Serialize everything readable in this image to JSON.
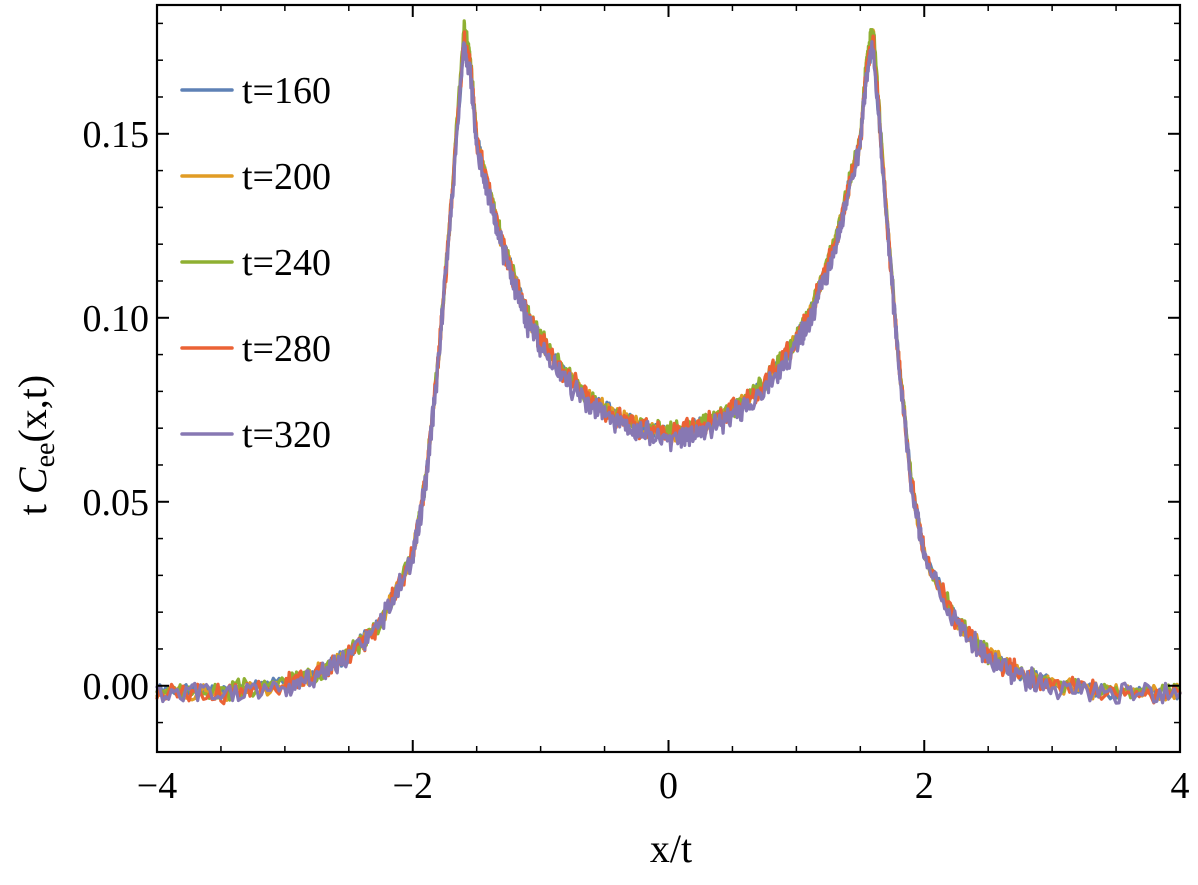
{
  "chart_data": {
    "type": "line",
    "title": "",
    "xlabel": "x/t",
    "ylabel_prefix": "t ",
    "ylabel_main": "C",
    "ylabel_sub": "ee",
    "ylabel_suffix": "(x,t)",
    "xlim": [
      -4,
      4
    ],
    "ylim": [
      -0.018,
      0.185
    ],
    "x_ticks": [
      -4,
      -2,
      0,
      2,
      4
    ],
    "x_tick_labels": [
      "−4",
      "−2",
      "0",
      "2",
      "4"
    ],
    "y_ticks": [
      0.0,
      0.05,
      0.1,
      0.15
    ],
    "y_tick_labels": [
      "0.00",
      "0.05",
      "0.10",
      "0.15"
    ],
    "grid": false,
    "legend_position": "top-left",
    "x": [
      -4.0,
      -3.5,
      -3.0,
      -2.75,
      -2.5,
      -2.25,
      -2.0,
      -1.9,
      -1.8,
      -1.7,
      -1.6,
      -1.55,
      -1.5,
      -1.4,
      -1.3,
      -1.2,
      -1.1,
      -1.0,
      -0.8,
      -0.6,
      -0.4,
      -0.2,
      0.0,
      0.2,
      0.4,
      0.6,
      0.8,
      1.0,
      1.1,
      1.2,
      1.3,
      1.4,
      1.5,
      1.55,
      1.6,
      1.7,
      1.8,
      1.9,
      2.0,
      2.25,
      2.5,
      2.75,
      3.0,
      3.5,
      4.0
    ],
    "series": [
      {
        "name": "t=160",
        "color": "#5E81B5",
        "seed": 1,
        "amp": 0.0015,
        "shift": 0.0005,
        "values": [
          -0.002,
          -0.002,
          0.0,
          0.003,
          0.008,
          0.017,
          0.035,
          0.055,
          0.088,
          0.13,
          0.173,
          0.168,
          0.148,
          0.134,
          0.12,
          0.11,
          0.1,
          0.094,
          0.084,
          0.077,
          0.073,
          0.07,
          0.068,
          0.07,
          0.073,
          0.077,
          0.084,
          0.094,
          0.1,
          0.11,
          0.12,
          0.134,
          0.148,
          0.168,
          0.173,
          0.13,
          0.088,
          0.055,
          0.035,
          0.017,
          0.008,
          0.003,
          0.0,
          -0.002,
          -0.002
        ]
      },
      {
        "name": "t=200",
        "color": "#E19C24",
        "seed": 2,
        "amp": 0.0018,
        "shift": 0.0003,
        "values": [
          -0.002,
          -0.002,
          0.0,
          0.003,
          0.008,
          0.017,
          0.035,
          0.055,
          0.088,
          0.13,
          0.177,
          0.169,
          0.148,
          0.134,
          0.12,
          0.11,
          0.1,
          0.094,
          0.084,
          0.077,
          0.073,
          0.07,
          0.068,
          0.07,
          0.073,
          0.077,
          0.084,
          0.094,
          0.1,
          0.11,
          0.12,
          0.134,
          0.148,
          0.169,
          0.177,
          0.13,
          0.088,
          0.055,
          0.035,
          0.017,
          0.008,
          0.003,
          0.0,
          -0.002,
          -0.002
        ]
      },
      {
        "name": "t=240",
        "color": "#8FB032",
        "seed": 3,
        "amp": 0.002,
        "shift": 0.0006,
        "values": [
          -0.002,
          -0.002,
          0.0,
          0.003,
          0.008,
          0.017,
          0.035,
          0.055,
          0.088,
          0.13,
          0.178,
          0.17,
          0.148,
          0.134,
          0.12,
          0.11,
          0.1,
          0.094,
          0.084,
          0.077,
          0.073,
          0.07,
          0.068,
          0.07,
          0.073,
          0.077,
          0.084,
          0.094,
          0.1,
          0.11,
          0.12,
          0.134,
          0.148,
          0.17,
          0.178,
          0.13,
          0.088,
          0.055,
          0.035,
          0.017,
          0.008,
          0.003,
          0.0,
          -0.002,
          -0.002
        ]
      },
      {
        "name": "t=280",
        "color": "#EB6235",
        "seed": 4,
        "amp": 0.0024,
        "shift": 0.0002,
        "values": [
          -0.002,
          -0.002,
          0.0,
          0.003,
          0.008,
          0.017,
          0.035,
          0.055,
          0.088,
          0.13,
          0.175,
          0.168,
          0.148,
          0.134,
          0.12,
          0.11,
          0.1,
          0.094,
          0.084,
          0.077,
          0.073,
          0.07,
          0.068,
          0.07,
          0.073,
          0.077,
          0.084,
          0.094,
          0.1,
          0.11,
          0.12,
          0.134,
          0.148,
          0.168,
          0.175,
          0.13,
          0.088,
          0.055,
          0.035,
          0.017,
          0.008,
          0.003,
          0.0,
          -0.002,
          -0.002
        ]
      },
      {
        "name": "t=320",
        "color": "#8778B3",
        "seed": 5,
        "amp": 0.0026,
        "shift": -0.0004,
        "values": [
          -0.002,
          -0.002,
          0.0,
          0.003,
          0.008,
          0.017,
          0.035,
          0.055,
          0.088,
          0.13,
          0.174,
          0.167,
          0.147,
          0.133,
          0.119,
          0.109,
          0.099,
          0.093,
          0.083,
          0.076,
          0.072,
          0.069,
          0.067,
          0.069,
          0.072,
          0.076,
          0.083,
          0.093,
          0.099,
          0.109,
          0.119,
          0.133,
          0.147,
          0.167,
          0.174,
          0.13,
          0.088,
          0.055,
          0.035,
          0.017,
          0.008,
          0.003,
          0.0,
          -0.002,
          -0.002
        ]
      }
    ]
  }
}
